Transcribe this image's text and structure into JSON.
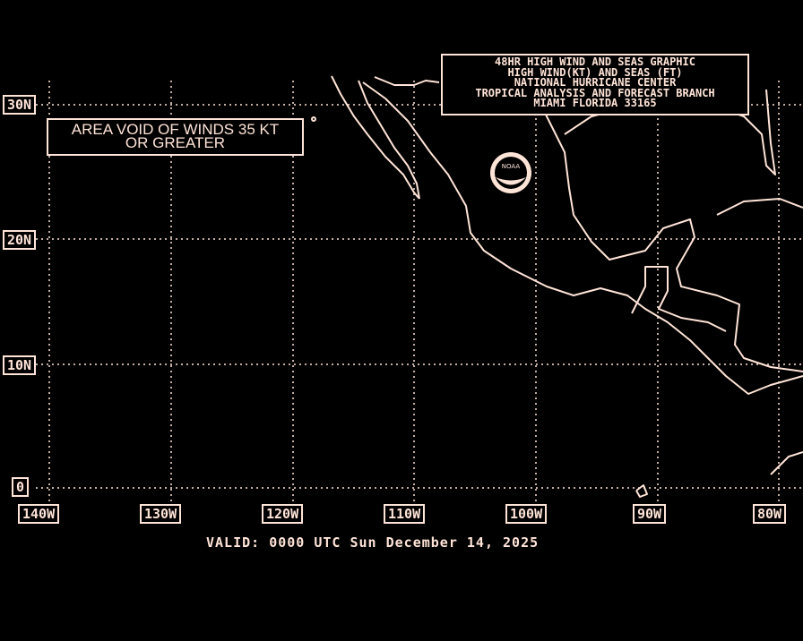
{
  "title_lines": [
    "48HR HIGH WIND AND SEAS GRAPHIC",
    "HIGH WIND(KT) AND SEAS (FT)",
    "NATIONAL HURRICANE CENTER",
    "TROPICAL ANALYSIS AND FORECAST BRANCH",
    "MIAMI FLORIDA  33165"
  ],
  "void_note": [
    "AREA VOID OF WINDS 35 KT",
    "OR GREATER"
  ],
  "valid": "VALID: 0000 UTC Sun December 14, 2025",
  "lat_labels": [
    "30N",
    "20N",
    "10N",
    "0"
  ],
  "lon_labels": [
    "140W",
    "130W",
    "120W",
    "110W",
    "100W",
    "90W",
    "80W"
  ],
  "logo": "NOAA",
  "colors": {
    "background": "#000000",
    "foreground": "#ffe4d8"
  }
}
